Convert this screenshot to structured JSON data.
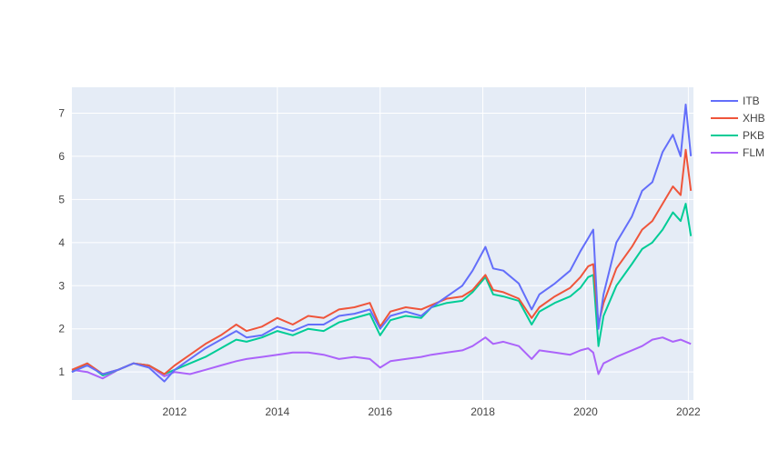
{
  "chart_data": {
    "type": "line",
    "title": "",
    "xlabel": "",
    "ylabel": "",
    "x_range": [
      2010.0,
      2022.1
    ],
    "ylim": [
      0.35,
      7.6
    ],
    "x_ticks": [
      2012,
      2014,
      2016,
      2018,
      2020,
      2022
    ],
    "y_ticks": [
      1,
      2,
      3,
      4,
      5,
      6,
      7
    ],
    "grid": true,
    "legend_position": "top-right",
    "plot_bgcolor": "#e5ecf6",
    "series": [
      {
        "name": "ITB",
        "color": "#636efa",
        "x": [
          2010.0,
          2010.3,
          2010.6,
          2010.9,
          2011.2,
          2011.5,
          2011.8,
          2012.0,
          2012.3,
          2012.6,
          2012.9,
          2013.2,
          2013.4,
          2013.7,
          2014.0,
          2014.3,
          2014.6,
          2014.9,
          2015.2,
          2015.5,
          2015.8,
          2016.0,
          2016.2,
          2016.5,
          2016.8,
          2017.0,
          2017.3,
          2017.6,
          2017.8,
          2018.05,
          2018.2,
          2018.4,
          2018.7,
          2018.95,
          2019.1,
          2019.4,
          2019.7,
          2019.9,
          2020.05,
          2020.15,
          2020.25,
          2020.35,
          2020.6,
          2020.9,
          2021.1,
          2021.3,
          2021.5,
          2021.7,
          2021.85,
          2021.95,
          2022.05
        ],
        "values": [
          1.0,
          1.15,
          0.95,
          1.05,
          1.2,
          1.1,
          0.78,
          1.05,
          1.3,
          1.55,
          1.75,
          1.95,
          1.8,
          1.85,
          2.05,
          1.95,
          2.1,
          2.1,
          2.3,
          2.35,
          2.45,
          2.0,
          2.3,
          2.4,
          2.3,
          2.5,
          2.75,
          3.0,
          3.35,
          3.9,
          3.4,
          3.35,
          3.05,
          2.45,
          2.8,
          3.05,
          3.35,
          3.8,
          4.1,
          4.3,
          2.0,
          2.8,
          4.0,
          4.6,
          5.2,
          5.4,
          6.1,
          6.5,
          6.0,
          7.2,
          6.0
        ]
      },
      {
        "name": "XHB",
        "color": "#ef553b",
        "x": [
          2010.0,
          2010.3,
          2010.6,
          2010.9,
          2011.2,
          2011.5,
          2011.8,
          2012.0,
          2012.3,
          2012.6,
          2012.9,
          2013.2,
          2013.4,
          2013.7,
          2014.0,
          2014.3,
          2014.6,
          2014.9,
          2015.2,
          2015.5,
          2015.8,
          2016.0,
          2016.2,
          2016.5,
          2016.8,
          2017.0,
          2017.3,
          2017.6,
          2017.8,
          2018.05,
          2018.2,
          2018.4,
          2018.7,
          2018.95,
          2019.1,
          2019.4,
          2019.7,
          2019.9,
          2020.05,
          2020.15,
          2020.25,
          2020.35,
          2020.6,
          2020.9,
          2021.1,
          2021.3,
          2021.5,
          2021.7,
          2021.85,
          2021.95,
          2022.05
        ],
        "values": [
          1.05,
          1.2,
          0.95,
          1.05,
          1.2,
          1.15,
          0.95,
          1.15,
          1.4,
          1.65,
          1.85,
          2.1,
          1.95,
          2.05,
          2.25,
          2.1,
          2.3,
          2.25,
          2.45,
          2.5,
          2.6,
          2.05,
          2.4,
          2.5,
          2.45,
          2.55,
          2.7,
          2.75,
          2.9,
          3.25,
          2.9,
          2.85,
          2.7,
          2.25,
          2.5,
          2.75,
          2.95,
          3.2,
          3.45,
          3.5,
          2.1,
          2.6,
          3.4,
          3.9,
          4.3,
          4.5,
          4.9,
          5.3,
          5.1,
          6.15,
          5.2
        ]
      },
      {
        "name": "PKB",
        "color": "#00cc96",
        "x": [
          2010.0,
          2010.3,
          2010.6,
          2010.9,
          2011.2,
          2011.5,
          2011.8,
          2012.0,
          2012.3,
          2012.6,
          2012.9,
          2013.2,
          2013.4,
          2013.7,
          2014.0,
          2014.3,
          2014.6,
          2014.9,
          2015.2,
          2015.5,
          2015.8,
          2016.0,
          2016.2,
          2016.5,
          2016.8,
          2017.0,
          2017.3,
          2017.6,
          2017.8,
          2018.05,
          2018.2,
          2018.4,
          2018.7,
          2018.95,
          2019.1,
          2019.4,
          2019.7,
          2019.9,
          2020.05,
          2020.15,
          2020.25,
          2020.35,
          2020.6,
          2020.9,
          2021.1,
          2021.3,
          2021.5,
          2021.7,
          2021.85,
          2021.95,
          2022.05
        ],
        "values": [
          1.0,
          1.2,
          0.92,
          1.05,
          1.2,
          1.15,
          0.95,
          1.05,
          1.2,
          1.35,
          1.55,
          1.75,
          1.7,
          1.8,
          1.95,
          1.85,
          2.0,
          1.95,
          2.15,
          2.25,
          2.35,
          1.85,
          2.2,
          2.3,
          2.25,
          2.5,
          2.6,
          2.65,
          2.85,
          3.2,
          2.8,
          2.75,
          2.65,
          2.1,
          2.4,
          2.6,
          2.75,
          2.95,
          3.2,
          3.25,
          1.6,
          2.3,
          3.0,
          3.5,
          3.85,
          4.0,
          4.3,
          4.7,
          4.5,
          4.9,
          4.15
        ]
      },
      {
        "name": "FLM",
        "color": "#ab63fa",
        "x": [
          2010.0,
          2010.3,
          2010.6,
          2010.9,
          2011.2,
          2011.5,
          2011.8,
          2012.0,
          2012.3,
          2012.6,
          2012.9,
          2013.2,
          2013.4,
          2013.7,
          2014.0,
          2014.3,
          2014.6,
          2014.9,
          2015.2,
          2015.5,
          2015.8,
          2016.0,
          2016.2,
          2016.5,
          2016.8,
          2017.0,
          2017.3,
          2017.6,
          2017.8,
          2018.05,
          2018.2,
          2018.4,
          2018.7,
          2018.95,
          2019.1,
          2019.4,
          2019.7,
          2019.9,
          2020.05,
          2020.15,
          2020.25,
          2020.35,
          2020.6,
          2020.9,
          2021.1,
          2021.3,
          2021.5,
          2021.7,
          2021.85,
          2021.95,
          2022.05
        ],
        "values": [
          1.05,
          1.0,
          0.85,
          1.05,
          1.2,
          1.15,
          0.9,
          1.0,
          0.95,
          1.05,
          1.15,
          1.25,
          1.3,
          1.35,
          1.4,
          1.45,
          1.45,
          1.4,
          1.3,
          1.35,
          1.3,
          1.1,
          1.25,
          1.3,
          1.35,
          1.4,
          1.45,
          1.5,
          1.6,
          1.8,
          1.65,
          1.7,
          1.6,
          1.3,
          1.5,
          1.45,
          1.4,
          1.5,
          1.55,
          1.45,
          0.95,
          1.2,
          1.35,
          1.5,
          1.6,
          1.75,
          1.8,
          1.7,
          1.75,
          1.7,
          1.65
        ]
      }
    ]
  }
}
